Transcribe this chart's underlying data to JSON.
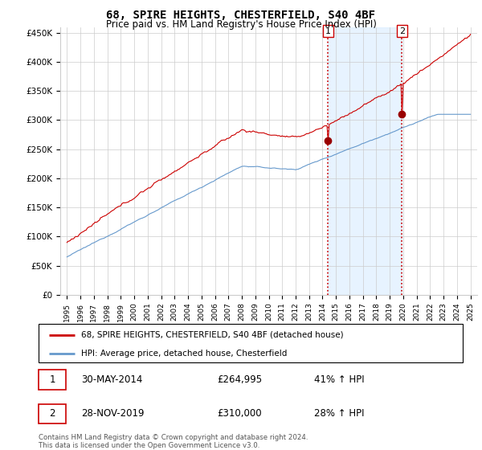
{
  "title": "68, SPIRE HEIGHTS, CHESTERFIELD, S40 4BF",
  "subtitle": "Price paid vs. HM Land Registry's House Price Index (HPI)",
  "ylabel_ticks": [
    "£0",
    "£50K",
    "£100K",
    "£150K",
    "£200K",
    "£250K",
    "£300K",
    "£350K",
    "£400K",
    "£450K"
  ],
  "ytick_vals": [
    0,
    50000,
    100000,
    150000,
    200000,
    250000,
    300000,
    350000,
    400000,
    450000
  ],
  "ylim": [
    0,
    460000
  ],
  "year_start": 1995,
  "year_end": 2025,
  "purchase1_year": 2014.42,
  "purchase1_price": 264995,
  "purchase2_year": 2019.91,
  "purchase2_price": 310000,
  "legend_line1": "68, SPIRE HEIGHTS, CHESTERFIELD, S40 4BF (detached house)",
  "legend_line2": "HPI: Average price, detached house, Chesterfield",
  "table_row1_num": "1",
  "table_row1_date": "30-MAY-2014",
  "table_row1_price": "£264,995",
  "table_row1_hpi": "41% ↑ HPI",
  "table_row2_num": "2",
  "table_row2_date": "28-NOV-2019",
  "table_row2_price": "£310,000",
  "table_row2_hpi": "28% ↑ HPI",
  "footnote": "Contains HM Land Registry data © Crown copyright and database right 2024.\nThis data is licensed under the Open Government Licence v3.0.",
  "red_color": "#cc0000",
  "blue_color": "#6699cc",
  "shade_color": "#ddeeff",
  "vline_color": "#cc0000",
  "grid_color": "#cccccc",
  "label_box_color": "#cc0000"
}
